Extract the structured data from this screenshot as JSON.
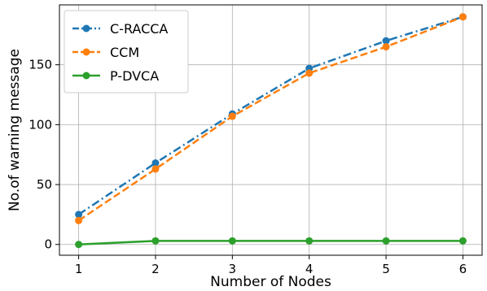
{
  "chart_data": {
    "type": "line",
    "xlabel": "Number of Nodes",
    "ylabel": "No.of warning message",
    "x": [
      1,
      2,
      3,
      4,
      5,
      6
    ],
    "xticks": [
      "1",
      "2",
      "3",
      "4",
      "5",
      "6"
    ],
    "yticks": [
      "0",
      "50",
      "100",
      "150"
    ],
    "ytick_values": [
      0,
      50,
      100,
      150
    ],
    "xlim": [
      0.75,
      6.25
    ],
    "ylim": [
      -9,
      200
    ],
    "grid": true,
    "legend_position": "top-left",
    "series": [
      {
        "name": "C-RACCA",
        "values": [
          25,
          68,
          109,
          147,
          170,
          190
        ],
        "color": "#1f77b4",
        "linestyle": "dashdot",
        "marker": "circle"
      },
      {
        "name": "CCM",
        "values": [
          20,
          63,
          107,
          143,
          165,
          190
        ],
        "color": "#ff7f0e",
        "linestyle": "dashed",
        "marker": "circle"
      },
      {
        "name": "P-DVCA",
        "values": [
          0,
          3,
          3,
          3,
          3,
          3
        ],
        "color": "#2ca02c",
        "linestyle": "solid",
        "marker": "circle"
      }
    ]
  }
}
